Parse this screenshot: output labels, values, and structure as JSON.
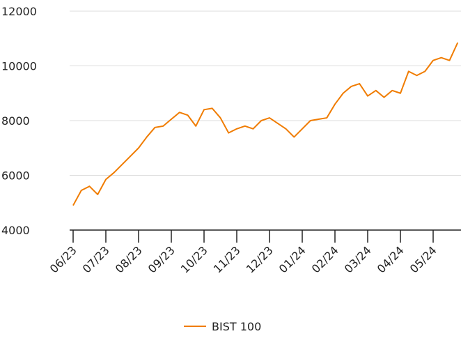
{
  "chart_data": {
    "type": "line",
    "categories": [
      "06/23",
      null,
      null,
      null,
      "07/23",
      null,
      null,
      null,
      "08/23",
      null,
      null,
      null,
      "09/23",
      null,
      null,
      null,
      "10/23",
      null,
      null,
      null,
      "11/23",
      null,
      null,
      null,
      "12/23",
      null,
      null,
      null,
      "01/24",
      null,
      null,
      null,
      "02/24",
      null,
      null,
      null,
      "03/24",
      null,
      null,
      null,
      "04/24",
      null,
      null,
      null,
      "05/24",
      null,
      null,
      null
    ],
    "series": [
      {
        "name": "BIST 100",
        "color": "#f07c00",
        "values": [
          4900,
          5450,
          5600,
          5300,
          5850,
          6100,
          6400,
          6700,
          7000,
          7400,
          7750,
          7800,
          8050,
          8300,
          8200,
          7800,
          8400,
          8450,
          8100,
          7550,
          7700,
          7800,
          7700,
          8000,
          8100,
          7900,
          7700,
          7400,
          7700,
          8000,
          8050,
          8100,
          8600,
          9000,
          9250,
          9350,
          8900,
          9100,
          8850,
          9100,
          9000,
          9800,
          9650,
          9800,
          10200,
          10300,
          10200,
          10850
        ]
      }
    ],
    "ylim": [
      4000,
      12000
    ],
    "yticks": [
      4000,
      6000,
      8000,
      10000,
      12000
    ],
    "grid": true,
    "legend": "bottom"
  }
}
